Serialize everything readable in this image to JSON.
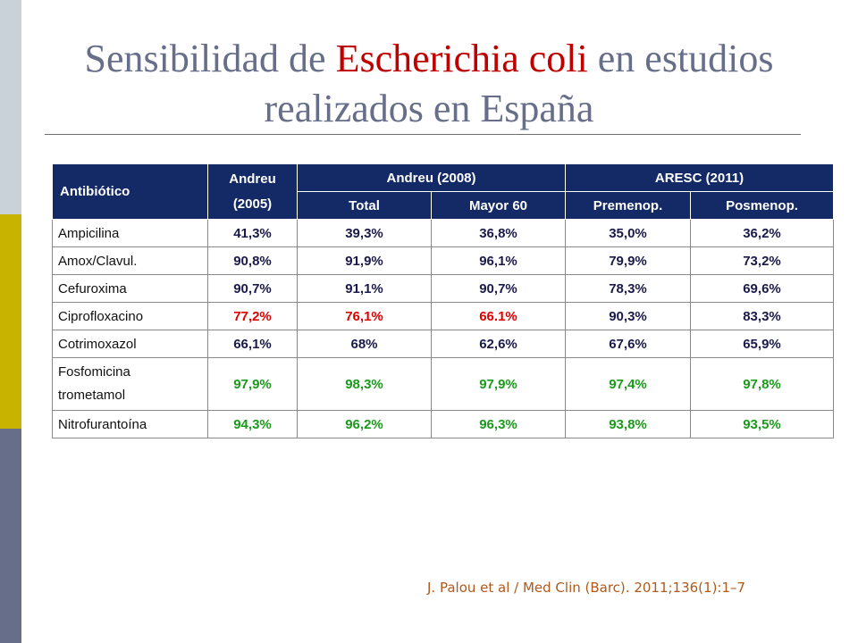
{
  "title": {
    "part1": "Sensibilidad de ",
    "highlight": "Escherichia coli",
    "part2": " en estudios",
    "line2": "realizados en España"
  },
  "table": {
    "header": {
      "antibiotic": "Antibiótico",
      "andreu2005_line1": "Andreu",
      "andreu2005_line2": "(2005)",
      "andreu2008": "Andreu (2008)",
      "aresc2011": "ARESC (2011)",
      "total": "Total",
      "mayor60": "Mayor 60",
      "premenop": "Premenop.",
      "posmenop": "Posmenop."
    },
    "rows": [
      {
        "name": "Ampicilina",
        "name2": "",
        "values": [
          "41,3%",
          "39,3%",
          "36,8%",
          "35,0%",
          "36,2%"
        ],
        "colors": [
          "blue",
          "blue",
          "blue",
          "blue",
          "blue"
        ]
      },
      {
        "name": "Amox/Clavul.",
        "name2": "",
        "values": [
          "90,8%",
          "91,9%",
          "96,1%",
          "79,9%",
          "73,2%"
        ],
        "colors": [
          "blue",
          "blue",
          "blue",
          "blue",
          "blue"
        ]
      },
      {
        "name": "Cefuroxima",
        "name2": "",
        "values": [
          "90,7%",
          "91,1%",
          "90,7%",
          "78,3%",
          "69,6%"
        ],
        "colors": [
          "blue",
          "blue",
          "blue",
          "blue",
          "blue"
        ]
      },
      {
        "name": "Ciprofloxacino",
        "name2": "",
        "values": [
          "77,2%",
          "76,1%",
          "66.1%",
          "90,3%",
          "83,3%"
        ],
        "colors": [
          "red",
          "red",
          "red",
          "blue",
          "blue"
        ]
      },
      {
        "name": "Cotrimoxazol",
        "name2": "",
        "values": [
          "66,1%",
          "68%",
          "62,6%",
          "67,6%",
          "65,9%"
        ],
        "colors": [
          "blue",
          "blue",
          "blue",
          "blue",
          "blue"
        ]
      },
      {
        "name": "Fosfomicina",
        "name2": "trometamol",
        "values": [
          "97,9%",
          "98,3%",
          "97,9%",
          "97,4%",
          "97,8%"
        ],
        "colors": [
          "green",
          "green",
          "green",
          "green",
          "green"
        ]
      },
      {
        "name": "Nitrofurantoína",
        "name2": "",
        "values": [
          "94,3%",
          "96,2%",
          "96,3%",
          "93,8%",
          "93,5%"
        ],
        "colors": [
          "green",
          "green",
          "green",
          "green",
          "green"
        ]
      }
    ]
  },
  "citation": "J. Palou et al / Med Clin (Barc). 2011;136(1):1–7",
  "colors": {
    "header_bg": "#142a66",
    "red": "#e00000",
    "green": "#1a9a1a",
    "title": "#676e8a",
    "title_highlight": "#c00000"
  }
}
